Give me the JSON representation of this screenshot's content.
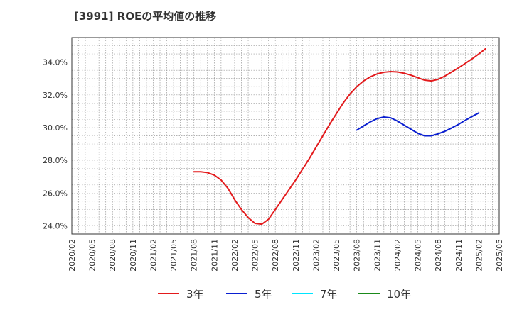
{
  "chart_data": {
    "type": "line",
    "title": "[3991]  ROEの平均値の推移",
    "xlabel": "",
    "ylabel": "",
    "ylim": [
      23.5,
      35.5
    ],
    "yticks": [
      24.0,
      26.0,
      28.0,
      30.0,
      32.0,
      34.0
    ],
    "ytick_labels": [
      "24.0%",
      "26.0%",
      "28.0%",
      "30.0%",
      "32.0%",
      "34.0%"
    ],
    "x_start": "2020/02",
    "x_end": "2025/05",
    "xtick_labels": [
      "2020/02",
      "2020/05",
      "2020/08",
      "2020/11",
      "2021/02",
      "2021/05",
      "2021/08",
      "2021/11",
      "2022/02",
      "2022/05",
      "2022/08",
      "2022/11",
      "2023/02",
      "2023/05",
      "2023/08",
      "2023/11",
      "2024/02",
      "2024/05",
      "2024/08",
      "2024/11",
      "2025/02",
      "2025/05"
    ],
    "grid": true,
    "legend_position": "bottom",
    "series": [
      {
        "name": "3年",
        "color": "#e31a1c",
        "start": "2021/08",
        "values": [
          27.3,
          27.3,
          27.25,
          27.1,
          26.8,
          26.3,
          25.6,
          25.0,
          24.5,
          24.15,
          24.1,
          24.4,
          25.0,
          25.6,
          26.2,
          26.8,
          27.45,
          28.1,
          28.8,
          29.5,
          30.2,
          30.85,
          31.5,
          32.05,
          32.5,
          32.85,
          33.1,
          33.28,
          33.38,
          33.42,
          33.4,
          33.32,
          33.2,
          33.05,
          32.9,
          32.85,
          32.95,
          33.15,
          33.4,
          33.65,
          33.92,
          34.2,
          34.5,
          34.82
        ]
      },
      {
        "name": "5年",
        "color": "#0a1fd1",
        "start": "2023/08",
        "values": [
          29.85,
          30.1,
          30.35,
          30.55,
          30.65,
          30.6,
          30.4,
          30.15,
          29.9,
          29.65,
          29.5,
          29.5,
          29.62,
          29.78,
          29.98,
          30.2,
          30.45,
          30.68,
          30.9
        ]
      },
      {
        "name": "7年",
        "color": "#00e5ff",
        "start": "",
        "values": []
      },
      {
        "name": "10年",
        "color": "#1a8a1a",
        "start": "",
        "values": []
      }
    ]
  }
}
